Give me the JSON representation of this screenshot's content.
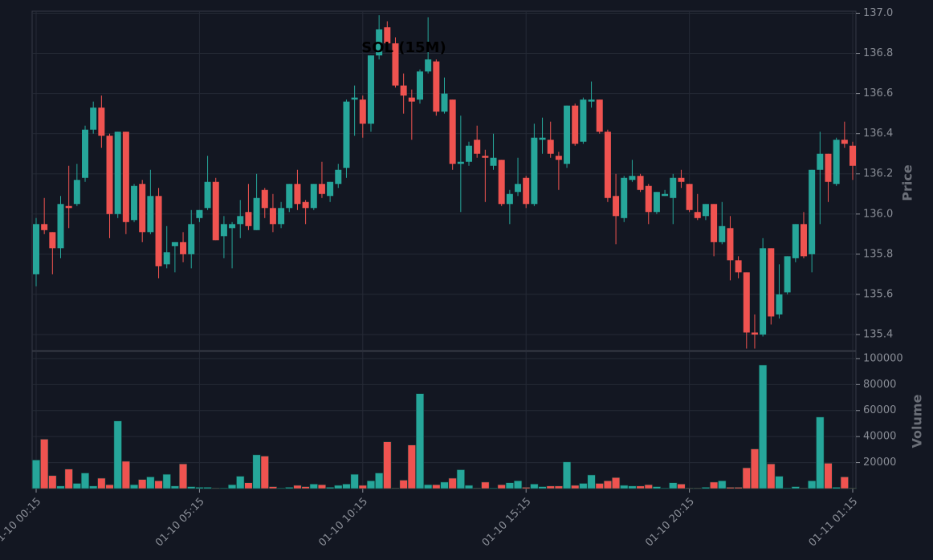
{
  "chart_data": {
    "type": "candlestick",
    "title": "SOL (15M)",
    "ylabel": "Price",
    "volume_label": "Volume",
    "up_color": "#26a69a",
    "down_color": "#ef5350",
    "grid": true,
    "categories": [
      "01-10 00:15",
      null,
      null,
      null,
      null,
      null,
      null,
      null,
      null,
      null,
      null,
      null,
      null,
      null,
      null,
      null,
      null,
      null,
      null,
      null,
      "01-10 05:15",
      null,
      null,
      null,
      null,
      null,
      null,
      null,
      null,
      null,
      null,
      null,
      null,
      null,
      null,
      null,
      null,
      null,
      null,
      null,
      "01-10 10:15",
      null,
      null,
      null,
      null,
      null,
      null,
      null,
      null,
      null,
      null,
      null,
      null,
      null,
      null,
      null,
      null,
      null,
      null,
      null,
      "01-10 15:15",
      null,
      null,
      null,
      null,
      null,
      null,
      null,
      null,
      null,
      null,
      null,
      null,
      null,
      null,
      null,
      null,
      null,
      null,
      null,
      "01-10 20:15",
      null,
      null,
      null,
      null,
      null,
      null,
      null,
      null,
      null,
      null,
      null,
      null,
      null,
      null,
      null,
      null,
      null,
      null,
      null,
      "01-11 01:15"
    ],
    "open": [
      135.7,
      135.95,
      135.91,
      135.83,
      136.04,
      136.05,
      136.18,
      136.42,
      136.53,
      136.39,
      136.0,
      136.41,
      135.97,
      136.15,
      135.91,
      136.09,
      135.75,
      135.84,
      135.86,
      135.8,
      135.98,
      136.03,
      136.16,
      135.89,
      135.93,
      135.95,
      136.01,
      135.92,
      136.12,
      136.03,
      135.95,
      136.03,
      136.15,
      136.06,
      136.03,
      136.15,
      136.09,
      136.15,
      136.23,
      136.57,
      136.57,
      136.45,
      136.79,
      136.93,
      136.85,
      136.64,
      136.58,
      136.57,
      136.71,
      136.76,
      136.51,
      136.57,
      136.25,
      136.26,
      136.37,
      136.29,
      136.24,
      136.27,
      136.05,
      136.11,
      136.18,
      136.05,
      136.37,
      136.37,
      136.29,
      136.25,
      136.54,
      136.36,
      136.56,
      136.57,
      136.41,
      136.09,
      135.98,
      136.17,
      136.19,
      136.14,
      136.01,
      136.09,
      136.08,
      136.18,
      136.15,
      136.01,
      135.99,
      136.05,
      135.86,
      135.93,
      135.77,
      135.71,
      135.41,
      135.4,
      135.83,
      135.5,
      135.61,
      135.78,
      135.95,
      135.8,
      136.22,
      136.3,
      136.15,
      136.37,
      136.34
    ],
    "high": [
      135.98,
      136.08,
      135.91,
      136.09,
      136.24,
      136.25,
      136.44,
      136.56,
      136.59,
      136.4,
      136.41,
      136.41,
      136.15,
      136.17,
      136.22,
      136.13,
      135.94,
      135.86,
      135.91,
      136.02,
      136.02,
      136.29,
      136.18,
      135.99,
      135.96,
      136.07,
      136.15,
      136.2,
      136.13,
      136.1,
      136.06,
      136.15,
      136.22,
      136.07,
      136.15,
      136.26,
      136.16,
      136.25,
      136.57,
      136.64,
      136.59,
      136.79,
      136.99,
      136.96,
      136.88,
      136.7,
      136.62,
      136.72,
      136.98,
      136.77,
      136.68,
      136.57,
      136.49,
      136.36,
      136.44,
      136.32,
      136.4,
      136.27,
      136.12,
      136.28,
      136.19,
      136.45,
      136.48,
      136.46,
      136.31,
      136.54,
      136.55,
      136.58,
      136.66,
      136.57,
      136.42,
      136.2,
      136.19,
      136.27,
      136.2,
      136.15,
      136.11,
      136.12,
      136.2,
      136.22,
      136.15,
      136.1,
      136.05,
      136.05,
      136.06,
      135.99,
      135.79,
      135.71,
      135.5,
      135.88,
      135.83,
      135.75,
      135.79,
      135.95,
      136.01,
      136.22,
      136.41,
      136.3,
      136.38,
      136.46,
      136.36
    ],
    "low": [
      135.64,
      135.9,
      135.7,
      135.78,
      135.93,
      136.04,
      136.16,
      136.4,
      136.33,
      135.88,
      135.98,
      135.9,
      135.96,
      135.86,
      135.9,
      135.68,
      135.73,
      135.71,
      135.76,
      135.73,
      135.96,
      136.02,
      135.87,
      135.78,
      135.73,
      135.88,
      135.92,
      135.92,
      135.98,
      135.91,
      135.93,
      136.01,
      136.02,
      135.95,
      136.02,
      136.08,
      136.06,
      136.13,
      136.18,
      136.39,
      136.38,
      136.41,
      136.77,
      136.84,
      136.63,
      136.5,
      136.37,
      136.55,
      136.7,
      136.49,
      136.5,
      136.22,
      136.01,
      136.24,
      136.28,
      136.06,
      136.22,
      136.04,
      135.95,
      136.09,
      136.03,
      136.04,
      136.3,
      136.28,
      136.12,
      136.23,
      136.34,
      136.35,
      136.53,
      136.4,
      136.06,
      135.85,
      135.96,
      136.16,
      136.11,
      135.95,
      136.0,
      136.09,
      135.95,
      136.13,
      136.01,
      135.97,
      135.97,
      135.79,
      135.85,
      135.67,
      135.68,
      135.33,
      135.33,
      135.39,
      135.45,
      135.48,
      135.6,
      135.76,
      135.78,
      135.71,
      135.95,
      136.06,
      136.14,
      136.33,
      136.17
    ],
    "close": [
      135.95,
      135.92,
      135.83,
      136.05,
      136.03,
      136.17,
      136.42,
      136.53,
      136.39,
      136.0,
      136.41,
      135.96,
      136.14,
      135.91,
      136.09,
      135.74,
      135.81,
      135.86,
      135.8,
      135.95,
      136.02,
      136.16,
      135.87,
      135.95,
      135.95,
      135.99,
      135.94,
      136.08,
      136.03,
      135.95,
      136.03,
      136.15,
      136.05,
      136.03,
      136.15,
      136.1,
      136.16,
      136.22,
      136.56,
      136.58,
      136.45,
      136.79,
      136.92,
      136.85,
      136.64,
      136.59,
      136.56,
      136.71,
      136.77,
      136.51,
      136.6,
      136.25,
      136.26,
      136.34,
      136.3,
      136.28,
      136.28,
      136.05,
      136.1,
      136.15,
      136.05,
      136.38,
      136.38,
      136.3,
      136.27,
      136.54,
      136.35,
      136.57,
      136.57,
      136.41,
      136.08,
      135.99,
      136.18,
      136.19,
      136.12,
      136.01,
      136.11,
      136.1,
      136.18,
      136.16,
      136.02,
      135.98,
      136.05,
      135.86,
      135.94,
      135.77,
      135.71,
      135.41,
      135.4,
      135.83,
      135.49,
      135.6,
      135.79,
      135.95,
      135.79,
      136.22,
      136.3,
      136.16,
      136.37,
      136.35,
      136.24
    ],
    "volume": [
      22000,
      38000,
      10000,
      2000,
      15000,
      4000,
      12000,
      2000,
      8000,
      3000,
      52000,
      21000,
      3000,
      7000,
      9000,
      6000,
      11000,
      2000,
      19000,
      1500,
      1000,
      1000,
      500,
      500,
      3000,
      9500,
      4500,
      26000,
      25000,
      1500,
      500,
      1000,
      2500,
      1500,
      3500,
      3000,
      1000,
      2500,
      3500,
      11000,
      2500,
      6000,
      12000,
      36000,
      500,
      6500,
      33500,
      73000,
      3000,
      3000,
      5000,
      8000,
      14500,
      2500,
      500,
      5000,
      500,
      3000,
      4500,
      6000,
      1000,
      3500,
      1500,
      2000,
      2000,
      20500,
      2500,
      4000,
      10500,
      4000,
      6000,
      8500,
      2500,
      2000,
      2000,
      3000,
      1500,
      500,
      4500,
      3500,
      500,
      500,
      1000,
      5000,
      6000,
      1000,
      1000,
      16000,
      30500,
      95000,
      19000,
      9500,
      500,
      1500,
      500,
      6000,
      55000,
      19500,
      1000,
      9000,
      500
    ],
    "ylim": [
      135.32,
      137.01
    ],
    "yticks": [
      135.4,
      135.6,
      135.8,
      {
        "value": 136.0,
        "label": "136.0"
      },
      136.2,
      136.4,
      136.6,
      136.8,
      {
        "value": 137.0,
        "label": "137.0"
      }
    ],
    "volume_ylim": [
      0,
      105500
    ],
    "volume_yticks": [
      20000,
      40000,
      60000,
      80000,
      100000
    ]
  }
}
